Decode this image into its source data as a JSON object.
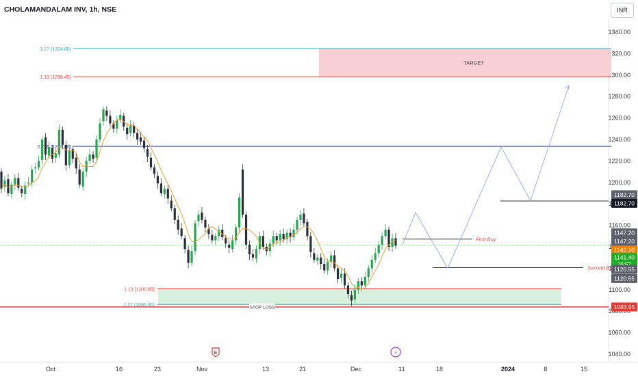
{
  "header": {
    "title": "CHOLAMANDALAM INV, 1h, NSE",
    "currency": "INR"
  },
  "chart_data": {
    "type": "candlestick",
    "y_axis": {
      "ticks": [
        1040,
        1060,
        1080,
        1100,
        1120,
        1140,
        1160,
        1180,
        1200,
        1220,
        1240,
        1260,
        1280,
        1300,
        1320,
        1340
      ],
      "range": [
        1033,
        1351
      ]
    },
    "x_axis": {
      "ticks": [
        "Oct",
        "16",
        "23",
        "Nov",
        "13",
        "21",
        "Dec",
        "11",
        "18",
        "2024",
        "8",
        "15"
      ]
    },
    "levels": [
      {
        "name": "fib-1.27-upper",
        "label": "1.27 (1324.80)",
        "price": 1324.8,
        "color": "#22b8c8"
      },
      {
        "name": "fib-1.13-upper",
        "label": "1.13 (1298.45)",
        "price": 1298.45,
        "color": "#e04646"
      },
      {
        "name": "fib-0.786",
        "label": "0.786 (1233.60)",
        "price": 1233.6,
        "color": "#3a4bb6"
      },
      {
        "name": "fib-1.13-lower",
        "label": "1.13 (1100.85)",
        "price": 1100.85,
        "color": "#e04646"
      },
      {
        "name": "fib-1.27-lower",
        "label": "1.27 (1086.35)",
        "price": 1086.35,
        "color": "#22b8c8"
      }
    ],
    "zones": [
      {
        "name": "target-zone",
        "label": "TARGET",
        "top": 1324.8,
        "bottom": 1298.45,
        "color": "#f8d0d4"
      },
      {
        "name": "stop-zone",
        "top": 1100.85,
        "bottom": 1086.35,
        "color": "#d8f0de"
      }
    ],
    "stop_loss": {
      "label": "STOP LOSS",
      "price": 1083.95
    },
    "buy_lines": [
      {
        "label": "First Buy",
        "price": 1147.2
      },
      {
        "label": "Second Buy",
        "price": 1120.55
      },
      {
        "label": "",
        "price": 1182.7
      }
    ],
    "projection_path": [
      [
        588,
        1142
      ],
      [
        607,
        1172
      ],
      [
        654,
        1120
      ],
      [
        732,
        1233
      ],
      [
        775,
        1183
      ],
      [
        831,
        1290
      ]
    ],
    "price_tags": [
      {
        "text": "1182.70",
        "price": 1188.5,
        "bg": "#5d606b",
        "fg": "#ffffff"
      },
      {
        "text": "1182.70",
        "price": 1180.5,
        "bg": "#131722",
        "fg": "#ffffff"
      },
      {
        "text": "1147.20",
        "price": 1153.0,
        "bg": "#5d606b",
        "fg": "#ffffff"
      },
      {
        "text": "1147.20",
        "price": 1145.0,
        "bg": "#5d606b",
        "fg": "#ffffff"
      },
      {
        "text": "1142.10",
        "price": 1137.0,
        "bg": "#f57c00",
        "fg": "#ffffff"
      },
      {
        "text": "1141.40",
        "price": 1130.0,
        "bg": "#22ab27",
        "fg": "#ffffff",
        "sub": "16:57"
      },
      {
        "text": "1120.55",
        "price": 1119.0,
        "bg": "#5d606b",
        "fg": "#ffffff"
      },
      {
        "text": "1120.55",
        "price": 1110.5,
        "bg": "#5d606b",
        "fg": "#ffffff"
      },
      {
        "text": "1083.95",
        "price": 1083.95,
        "bg": "#e53935",
        "fg": "#ffffff"
      }
    ],
    "events": [
      {
        "name": "earnings-icon",
        "label": "E",
        "x": 315
      },
      {
        "name": "flash-icon",
        "label": "⚡",
        "x": 578
      }
    ],
    "candles": [
      [
        1210,
        1194
      ],
      [
        1196,
        1202
      ],
      [
        1203,
        1190
      ],
      [
        1189,
        1198
      ],
      [
        1198,
        1204
      ],
      [
        1204,
        1195
      ],
      [
        1194,
        1190
      ],
      [
        1189,
        1197
      ],
      [
        1199,
        1200
      ],
      [
        1200,
        1212
      ],
      [
        1213,
        1214
      ],
      [
        1214,
        1220
      ],
      [
        1221,
        1240
      ],
      [
        1242,
        1226
      ],
      [
        1225,
        1233
      ],
      [
        1232,
        1222
      ],
      [
        1223,
        1227
      ],
      [
        1226,
        1249
      ],
      [
        1249,
        1235
      ],
      [
        1235,
        1216
      ],
      [
        1216,
        1230
      ],
      [
        1231,
        1222
      ],
      [
        1223,
        1213
      ],
      [
        1212,
        1198
      ],
      [
        1196,
        1210
      ],
      [
        1210,
        1220
      ],
      [
        1220,
        1226
      ],
      [
        1226,
        1222
      ],
      [
        1223,
        1240
      ],
      [
        1240,
        1255
      ],
      [
        1257,
        1268
      ],
      [
        1267,
        1262
      ],
      [
        1262,
        1255
      ],
      [
        1255,
        1250
      ],
      [
        1250,
        1258
      ],
      [
        1258,
        1263
      ],
      [
        1262,
        1252
      ],
      [
        1251,
        1245
      ],
      [
        1246,
        1253
      ],
      [
        1253,
        1246
      ],
      [
        1246,
        1240
      ],
      [
        1242,
        1238
      ],
      [
        1239,
        1232
      ],
      [
        1231,
        1224
      ],
      [
        1223,
        1214
      ],
      [
        1214,
        1208
      ],
      [
        1206,
        1199
      ],
      [
        1199,
        1190
      ],
      [
        1189,
        1194
      ],
      [
        1194,
        1185
      ],
      [
        1183,
        1176
      ],
      [
        1176,
        1165
      ],
      [
        1165,
        1156
      ],
      [
        1157,
        1150
      ],
      [
        1148,
        1138
      ],
      [
        1137,
        1125
      ],
      [
        1125,
        1136
      ],
      [
        1136,
        1162
      ],
      [
        1164,
        1170
      ],
      [
        1172,
        1165
      ],
      [
        1165,
        1158
      ],
      [
        1157,
        1152
      ],
      [
        1151,
        1146
      ],
      [
        1146,
        1150
      ],
      [
        1150,
        1156
      ],
      [
        1156,
        1149
      ],
      [
        1148,
        1143
      ],
      [
        1142,
        1139
      ],
      [
        1138,
        1146
      ],
      [
        1146,
        1158
      ],
      [
        1158,
        1186
      ],
      [
        1212,
        1170
      ],
      [
        1170,
        1142
      ],
      [
        1142,
        1133
      ],
      [
        1133,
        1130
      ],
      [
        1129,
        1138
      ],
      [
        1138,
        1150
      ],
      [
        1150,
        1140
      ],
      [
        1140,
        1136
      ],
      [
        1136,
        1143
      ],
      [
        1143,
        1150
      ],
      [
        1150,
        1146
      ],
      [
        1146,
        1152
      ],
      [
        1152,
        1147
      ],
      [
        1147,
        1153
      ],
      [
        1153,
        1149
      ],
      [
        1149,
        1156
      ],
      [
        1156,
        1165
      ],
      [
        1165,
        1170
      ],
      [
        1171,
        1162
      ],
      [
        1163,
        1150
      ],
      [
        1150,
        1135
      ],
      [
        1134,
        1128
      ],
      [
        1127,
        1130
      ],
      [
        1130,
        1124
      ],
      [
        1124,
        1118
      ],
      [
        1118,
        1126
      ],
      [
        1126,
        1132
      ],
      [
        1132,
        1120
      ],
      [
        1120,
        1110
      ],
      [
        1111,
        1115
      ],
      [
        1115,
        1104
      ],
      [
        1104,
        1096
      ],
      [
        1095,
        1090
      ],
      [
        1091,
        1100
      ],
      [
        1100,
        1108
      ],
      [
        1108,
        1104
      ],
      [
        1104,
        1112
      ],
      [
        1112,
        1120
      ],
      [
        1120,
        1128
      ],
      [
        1128,
        1134
      ],
      [
        1134,
        1142
      ],
      [
        1142,
        1150
      ],
      [
        1150,
        1156
      ],
      [
        1156,
        1140
      ],
      [
        1140,
        1148
      ],
      [
        1148,
        1141
      ]
    ],
    "moving_average_color": "#f0a030"
  }
}
